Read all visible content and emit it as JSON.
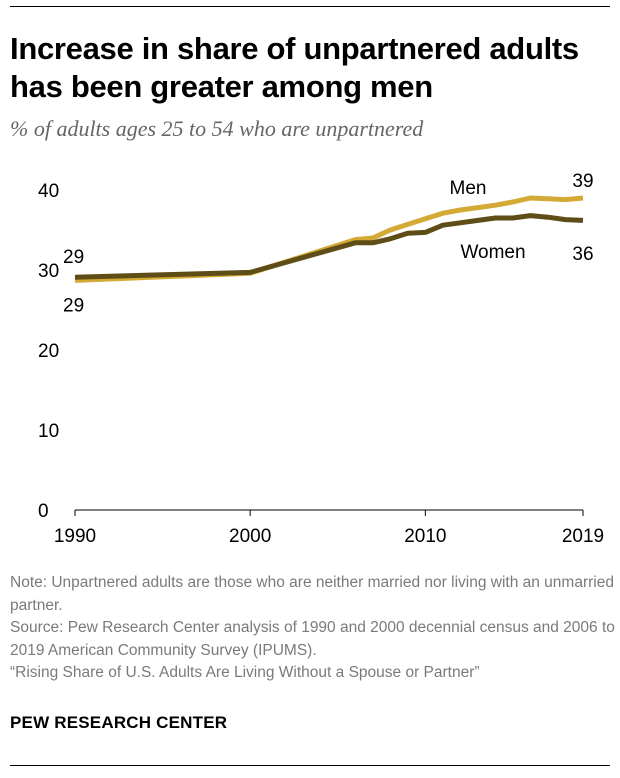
{
  "header": {
    "title": "Increase in share of unpartnered adults has been greater among men",
    "subtitle": "% of adults ages 25 to 54 who are unpartnered"
  },
  "chart_data": {
    "type": "line",
    "title": "Increase in share of unpartnered adults has been greater among men",
    "subtitle": "% of adults ages 25 to 54 who are unpartnered",
    "xlabel": "",
    "ylabel": "",
    "xlim": [
      1990,
      2019
    ],
    "ylim": [
      0,
      40
    ],
    "yticks": [
      "0",
      "10",
      "20",
      "30",
      "40"
    ],
    "xticks": [
      1990,
      2000,
      2010,
      2019
    ],
    "xtick_labels": [
      "1990",
      "2000",
      "2010",
      "2019"
    ],
    "grid": false,
    "series": [
      {
        "name": "Men",
        "color": "#d4aa36",
        "x": [
          1990,
          2000,
          2006,
          2007,
          2008,
          2009,
          2010,
          2011,
          2012,
          2013,
          2014,
          2015,
          2016,
          2017,
          2018,
          2019
        ],
        "y": [
          28.7,
          29.6,
          33.8,
          34.0,
          35.0,
          35.7,
          36.4,
          37.1,
          37.5,
          37.8,
          38.1,
          38.5,
          39.0,
          38.9,
          38.8,
          39.0
        ],
        "start_label": "29",
        "end_label": "39"
      },
      {
        "name": "Women",
        "color": "#5e4d16",
        "x": [
          1990,
          2000,
          2006,
          2007,
          2008,
          2009,
          2010,
          2011,
          2012,
          2013,
          2014,
          2015,
          2016,
          2017,
          2018,
          2019
        ],
        "y": [
          29.1,
          29.7,
          33.4,
          33.4,
          33.9,
          34.6,
          34.7,
          35.6,
          35.9,
          36.2,
          36.5,
          36.5,
          36.8,
          36.6,
          36.3,
          36.2
        ],
        "start_label": "29",
        "end_label": "36"
      }
    ]
  },
  "footer": {
    "note": "Note: Unpartnered adults are those who are neither married nor living with an unmarried partner.",
    "source": "Source: Pew Research Center analysis of 1990 and 2000 decennial census and 2006 to 2019 American Community Survey (IPUMS).",
    "report": "“Rising Share of U.S. Adults Are Living Without a Spouse or Partner”",
    "organization": "PEW RESEARCH CENTER"
  }
}
